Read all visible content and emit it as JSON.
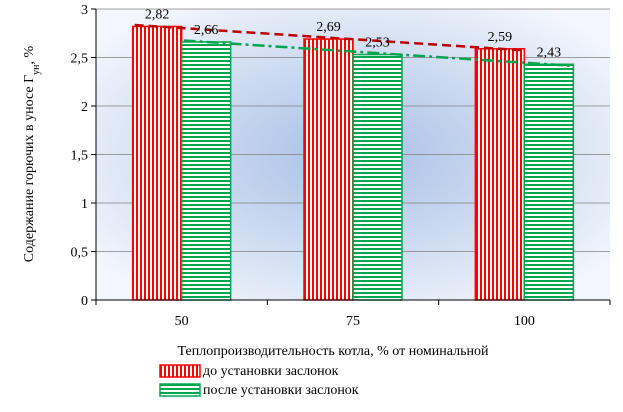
{
  "chart_data": {
    "type": "bar",
    "categories": [
      "50",
      "75",
      "100"
    ],
    "series": [
      {
        "name": "до установки заслонок",
        "values": [
          2.82,
          2.69,
          2.59
        ],
        "value_labels": [
          "2,82",
          "2,69",
          "2,59"
        ],
        "color": "#ff0000"
      },
      {
        "name": "после установки заслонок",
        "values": [
          2.66,
          2.53,
          2.43
        ],
        "value_labels": [
          "2,66",
          "2,53",
          "2,43"
        ],
        "color": "#00a550"
      }
    ],
    "ylim": [
      0,
      3
    ],
    "yticks": [
      0,
      0.5,
      1,
      1.5,
      2,
      2.5,
      3
    ],
    "ytick_labels": [
      "0",
      "0,5",
      "1",
      "1,5",
      "2",
      "2,5",
      "3"
    ],
    "xlabel": "Теплопроизводительность котла, % от номинальной",
    "ylabel": "Содержание горючих в уносе Г",
    "ylabel_sub": "ун",
    "ylabel_suffix": ", %",
    "trendlines": [
      {
        "series": "до установки заслонок",
        "style": "dashed",
        "color": "#c00000"
      },
      {
        "series": "после установки заслонок",
        "style": "dash-dot",
        "color": "#00a550"
      }
    ],
    "grid": true,
    "legend_position": "bottom"
  }
}
